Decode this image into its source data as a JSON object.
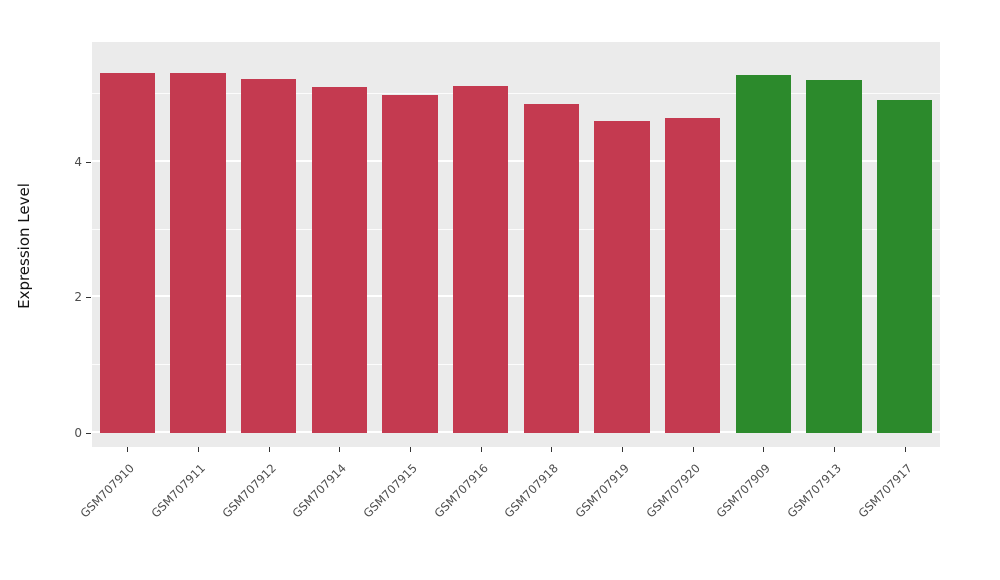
{
  "chart_data": {
    "type": "bar",
    "title": "",
    "xlabel": "",
    "ylabel": "Expression Level",
    "categories": [
      "GSM707910",
      "GSM707911",
      "GSM707912",
      "GSM707914",
      "GSM707915",
      "GSM707916",
      "GSM707918",
      "GSM707919",
      "GSM707920",
      "GSM707909",
      "GSM707913",
      "GSM707917"
    ],
    "values": [
      5.31,
      5.31,
      5.22,
      5.1,
      4.99,
      5.12,
      4.85,
      4.6,
      4.65,
      5.28,
      5.21,
      4.91
    ],
    "bar_colors": [
      "#C43A50",
      "#C43A50",
      "#C43A50",
      "#C43A50",
      "#C43A50",
      "#C43A50",
      "#C43A50",
      "#C43A50",
      "#C43A50",
      "#2C8A2C",
      "#2C8A2C",
      "#2C8A2C"
    ],
    "group_colors": {
      "red_group": "#C43A50",
      "green_group": "#2C8A2C"
    },
    "yticks": [
      0,
      2,
      4
    ],
    "minor_ticks": [
      1,
      3,
      5
    ],
    "ylim": [
      0,
      5.77
    ],
    "panel_background": "#EBEBEB",
    "grid_color": "#FFFFFF",
    "grid": "on",
    "legend": "none"
  }
}
